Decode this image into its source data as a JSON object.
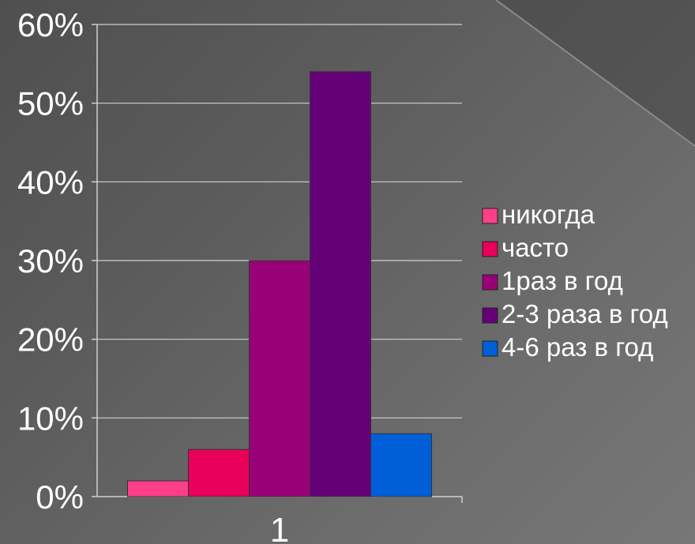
{
  "chart_data": {
    "type": "bar",
    "categories": [
      "1"
    ],
    "series": [
      {
        "name": "никогда",
        "values": [
          2
        ],
        "color": "#ff3f8a"
      },
      {
        "name": "часто",
        "values": [
          6
        ],
        "color": "#e8005a"
      },
      {
        "name": "1раз в год",
        "values": [
          30
        ],
        "color": "#990078"
      },
      {
        "name": "2-3 раза в год",
        "values": [
          54
        ],
        "color": "#660077"
      },
      {
        "name": "4-6 раз в год",
        "values": [
          8
        ],
        "color": "#005ed8"
      }
    ],
    "yticks": [
      "0%",
      "10%",
      "20%",
      "30%",
      "40%",
      "50%",
      "60%"
    ],
    "ylim": [
      0,
      60
    ],
    "grid": true,
    "legend_position": "right"
  }
}
